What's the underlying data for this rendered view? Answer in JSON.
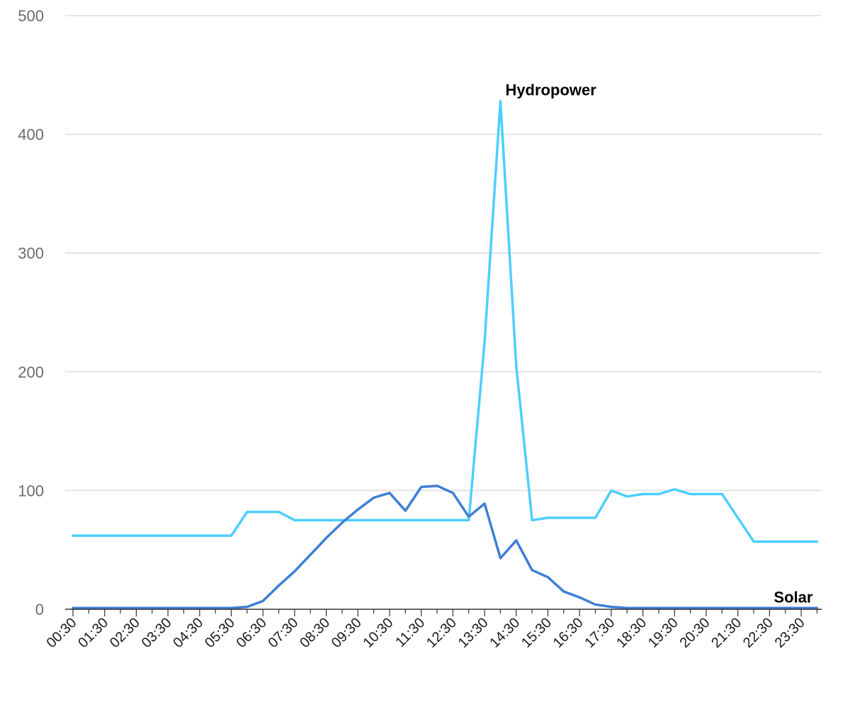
{
  "chart_data": {
    "type": "line",
    "title": "",
    "xlabel": "",
    "ylabel": "",
    "ylim": [
      0,
      500
    ],
    "yticks": [
      0,
      100,
      200,
      300,
      400,
      500
    ],
    "grid": true,
    "legend": "none",
    "x_tick_labels": [
      "00:30",
      "01:30",
      "02:30",
      "03:30",
      "04:30",
      "05:30",
      "06:30",
      "07:30",
      "08:30",
      "09:30",
      "10:30",
      "11:30",
      "12:30",
      "13:30",
      "14:30",
      "15:30",
      "16:30",
      "17:30",
      "18:30",
      "19:30",
      "20:30",
      "21:30",
      "22:30",
      "23:30"
    ],
    "x": [
      "00:30",
      "01:00",
      "01:30",
      "02:00",
      "02:30",
      "03:00",
      "03:30",
      "04:00",
      "04:30",
      "05:00",
      "05:30",
      "06:00",
      "06:30",
      "07:00",
      "07:30",
      "08:00",
      "08:30",
      "09:00",
      "09:30",
      "10:00",
      "10:30",
      "11:00",
      "11:30",
      "12:00",
      "12:30",
      "13:00",
      "13:30",
      "14:00",
      "14:30",
      "15:00",
      "15:30",
      "16:00",
      "16:30",
      "17:00",
      "17:30",
      "18:00",
      "18:30",
      "19:00",
      "19:30",
      "20:00",
      "20:30",
      "21:00",
      "21:30",
      "22:00",
      "22:30",
      "23:00",
      "23:30",
      "00:00"
    ],
    "series": [
      {
        "name": "Hydropower",
        "color": "#4dcfff",
        "values": [
          62,
          62,
          62,
          62,
          62,
          62,
          62,
          62,
          62,
          62,
          62,
          82,
          82,
          82,
          75,
          75,
          75,
          75,
          75,
          75,
          75,
          75,
          75,
          75,
          75,
          75,
          225,
          428,
          205,
          75,
          77,
          77,
          77,
          77,
          100,
          95,
          97,
          97,
          101,
          97,
          97,
          97,
          77,
          57,
          57,
          57,
          57,
          57
        ]
      },
      {
        "name": "Solar",
        "color": "#3d7fd6",
        "values": [
          1,
          1,
          1,
          1,
          1,
          1,
          1,
          1,
          1,
          1,
          1,
          2,
          7,
          20,
          32,
          46,
          60,
          73,
          84,
          94,
          98,
          83,
          103,
          104,
          98,
          78,
          89,
          43,
          58,
          33,
          27,
          15,
          10,
          4,
          2,
          1,
          1,
          1,
          1,
          1,
          1,
          1,
          1,
          1,
          1,
          1,
          1,
          1
        ]
      }
    ]
  }
}
